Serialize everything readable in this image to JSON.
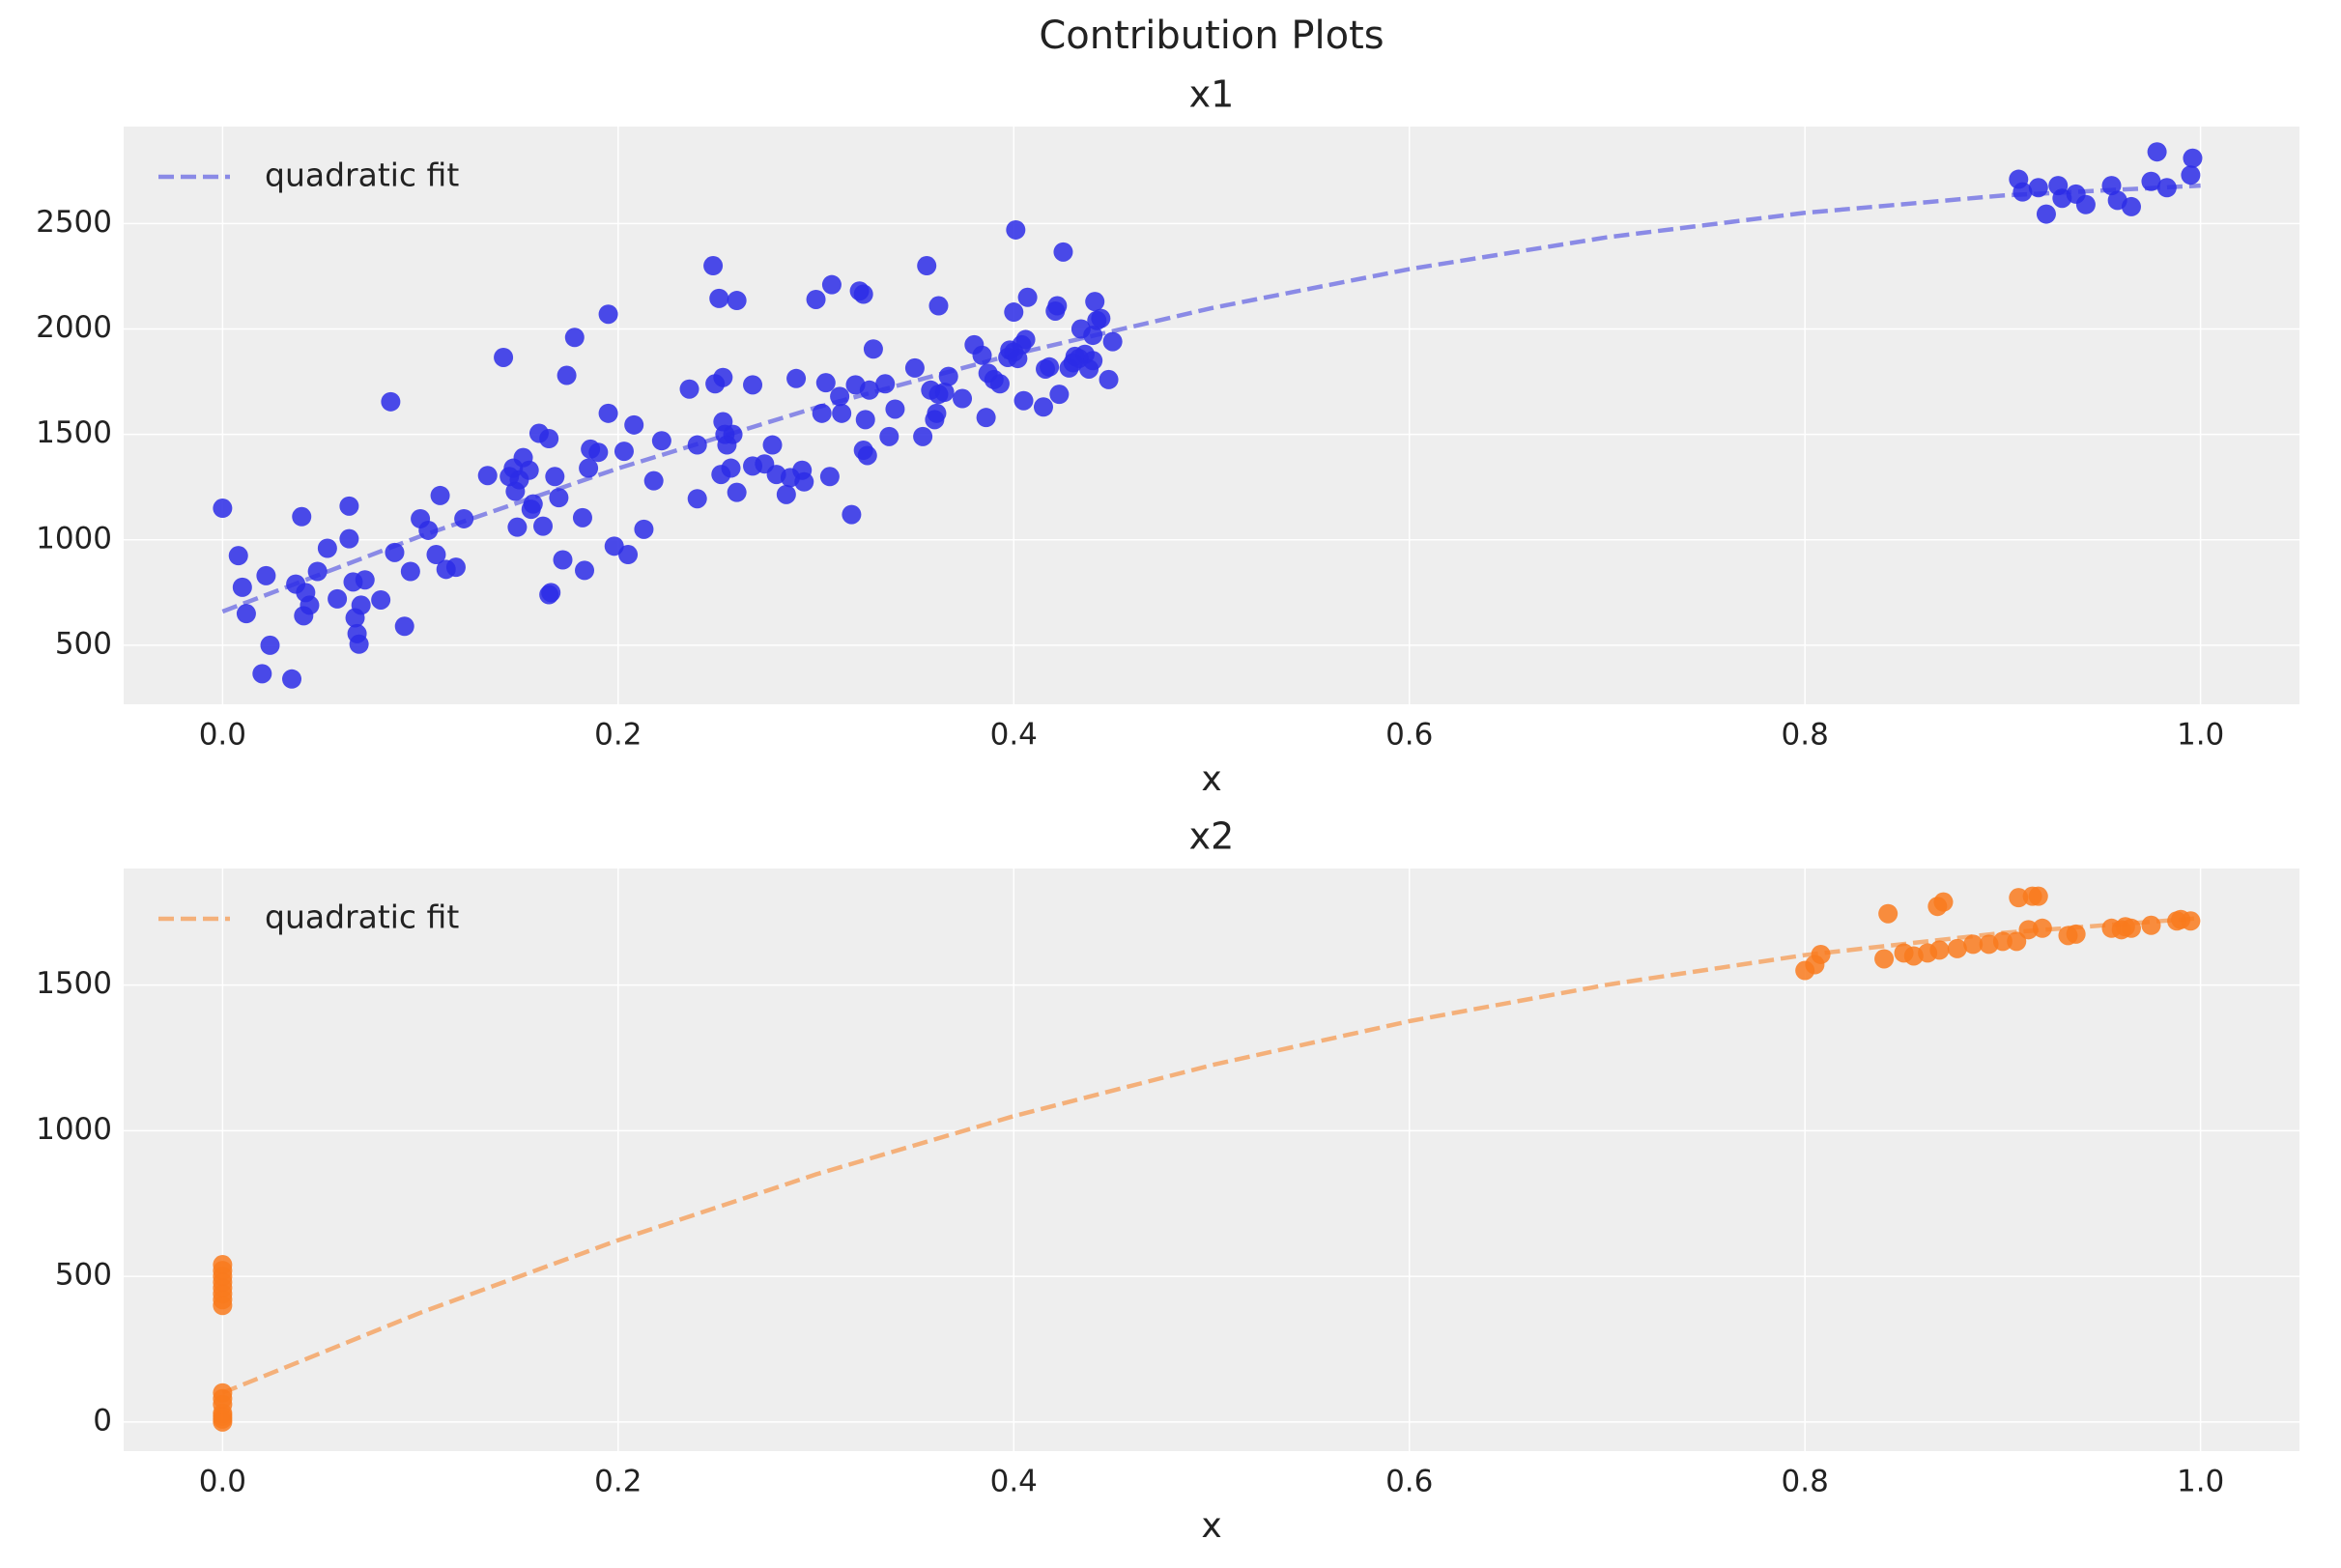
{
  "title": "Contribution Plots",
  "chart_data": [
    {
      "type": "scatter",
      "title": "x1",
      "xlabel": "x",
      "color": "#2b2be6",
      "grid": true,
      "legend": "upper left",
      "xlim": [
        -0.05,
        1.05
      ],
      "ylim": [
        220,
        2960
      ],
      "xticks": [
        {
          "value": 0,
          "label": "0.0"
        },
        0.2,
        0.4,
        0.6,
        0.8,
        {
          "value": 1,
          "label": "1.0"
        }
      ],
      "yticks": [
        500,
        1000,
        1500,
        2000,
        2500
      ],
      "x": [
        0.0,
        0.008,
        0.01,
        0.012,
        0.02,
        0.022,
        0.024,
        0.035,
        0.037,
        0.04,
        0.041,
        0.042,
        0.044,
        0.048,
        0.053,
        0.058,
        0.064,
        0.064,
        0.066,
        0.067,
        0.068,
        0.069,
        0.07,
        0.072,
        0.08,
        0.085,
        0.087,
        0.092,
        0.095,
        0.1,
        0.104,
        0.108,
        0.11,
        0.113,
        0.118,
        0.122,
        0.134,
        0.142,
        0.145,
        0.147,
        0.148,
        0.149,
        0.15,
        0.152,
        0.155,
        0.156,
        0.157,
        0.16,
        0.162,
        0.165,
        0.165,
        0.166,
        0.168,
        0.17,
        0.172,
        0.174,
        0.178,
        0.182,
        0.183,
        0.185,
        0.186,
        0.19,
        0.195,
        0.195,
        0.198,
        0.203,
        0.205,
        0.208,
        0.213,
        0.218,
        0.222,
        0.236,
        0.24,
        0.24,
        0.248,
        0.249,
        0.251,
        0.252,
        0.253,
        0.253,
        0.254,
        0.255,
        0.257,
        0.258,
        0.26,
        0.26,
        0.268,
        0.268,
        0.274,
        0.278,
        0.28,
        0.285,
        0.287,
        0.29,
        0.293,
        0.294,
        0.3,
        0.303,
        0.305,
        0.307,
        0.308,
        0.312,
        0.313,
        0.318,
        0.32,
        0.322,
        0.324,
        0.324,
        0.325,
        0.326,
        0.327,
        0.329,
        0.335,
        0.337,
        0.34,
        0.35,
        0.354,
        0.356,
        0.358,
        0.36,
        0.361,
        0.362,
        0.362,
        0.365,
        0.367,
        0.374,
        0.38,
        0.384,
        0.386,
        0.387,
        0.39,
        0.393,
        0.397,
        0.398,
        0.4,
        0.4,
        0.401,
        0.402,
        0.404,
        0.405,
        0.406,
        0.407,
        0.415,
        0.416,
        0.418,
        0.421,
        0.422,
        0.423,
        0.425,
        0.428,
        0.43,
        0.431,
        0.433,
        0.434,
        0.436,
        0.438,
        0.44,
        0.44,
        0.441,
        0.442,
        0.444,
        0.448,
        0.45,
        0.908,
        0.91,
        0.918,
        0.922,
        0.928,
        0.93,
        0.937,
        0.942,
        0.955,
        0.958,
        0.965,
        0.975,
        0.978,
        0.983,
        0.995,
        0.996
      ],
      "values": [
        1150,
        925,
        775,
        650,
        365,
        830,
        500,
        340,
        790,
        1110,
        640,
        750,
        690,
        850,
        960,
        720,
        1160,
        1005,
        800,
        630,
        555,
        505,
        690,
        810,
        715,
        1655,
        940,
        590,
        850,
        1100,
        1045,
        930,
        1210,
        860,
        870,
        1100,
        1305,
        1865,
        1300,
        1340,
        1230,
        1060,
        1285,
        1390,
        1330,
        1145,
        1170,
        1505,
        1065,
        1480,
        740,
        750,
        1300,
        1200,
        905,
        1780,
        1960,
        1105,
        855,
        1340,
        1430,
        1415,
        2070,
        1600,
        970,
        1420,
        930,
        1545,
        1050,
        1280,
        1470,
        1715,
        1195,
        1450,
        2300,
        1740,
        2145,
        1310,
        1770,
        1560,
        1500,
        1450,
        1340,
        1500,
        2135,
        1225,
        1735,
        1350,
        1360,
        1450,
        1310,
        1215,
        1295,
        1765,
        1330,
        1275,
        2140,
        1600,
        1745,
        1300,
        2210,
        1680,
        1600,
        1120,
        1735,
        2180,
        2165,
        1425,
        1570,
        1400,
        1710,
        1905,
        1740,
        1490,
        1620,
        1815,
        1490,
        2300,
        1710,
        1570,
        1600,
        2110,
        1690,
        1700,
        1775,
        1670,
        1925,
        1875,
        1580,
        1790,
        1760,
        1740,
        1865,
        1900,
        2080,
        1890,
        2470,
        1860,
        1925,
        1660,
        1950,
        2150,
        1630,
        1810,
        1820,
        2085,
        2110,
        1690,
        2365,
        1815,
        1840,
        1870,
        1860,
        2000,
        1880,
        1810,
        1850,
        1970,
        2130,
        2040,
        2050,
        1760,
        1940,
        2710,
        2650,
        2670,
        2545,
        2680,
        2620,
        2640,
        2590,
        2680,
        2610,
        2580,
        2700,
        2840,
        2670,
        2730,
        2810
      ],
      "series": [
        {
          "name": "quadratic fit",
          "color": "#8a8ae6",
          "x": [
            0,
            0.1,
            0.2,
            0.3,
            0.4,
            0.5,
            0.6,
            0.7,
            0.8,
            0.9,
            1
          ],
          "values": [
            660,
            1017,
            1339,
            1627,
            1880,
            2099,
            2284,
            2435,
            2551,
            2633,
            2680
          ]
        }
      ]
    },
    {
      "type": "scatter",
      "title": "x2",
      "xlabel": "x",
      "color": "#f97a1d",
      "grid": true,
      "legend": "upper left",
      "xlim": [
        -0.05,
        1.05
      ],
      "ylim": [
        -100,
        1900
      ],
      "xticks": [
        {
          "value": 0,
          "label": "0.0"
        },
        0.2,
        0.4,
        0.6,
        0.8,
        {
          "value": 1,
          "label": "1.0"
        }
      ],
      "yticks": [
        0,
        500,
        1000,
        1500
      ],
      "x": [
        0,
        0,
        0,
        0,
        0,
        0,
        0,
        0,
        0,
        0,
        0,
        0,
        0,
        0,
        0,
        0.8,
        0.805,
        0.808,
        0.84,
        0.842,
        0.85,
        0.855,
        0.862,
        0.867,
        0.868,
        0.87,
        0.877,
        0.885,
        0.893,
        0.9,
        0.907,
        0.908,
        0.913,
        0.915,
        0.918,
        0.92,
        0.933,
        0.937,
        0.955,
        0.96,
        0.962,
        0.965,
        0.975,
        0.988,
        0.99,
        0.995
      ],
      "values": [
        0,
        10,
        20,
        30,
        60,
        80,
        100,
        400,
        420,
        440,
        460,
        480,
        500,
        520,
        540,
        1550,
        1570,
        1605,
        1590,
        1745,
        1610,
        1600,
        1610,
        1770,
        1620,
        1785,
        1625,
        1640,
        1640,
        1650,
        1650,
        1800,
        1690,
        1805,
        1805,
        1695,
        1670,
        1675,
        1695,
        1690,
        1700,
        1695,
        1705,
        1720,
        1725,
        1720
      ],
      "series": [
        {
          "name": "quadratic fit",
          "color": "#f4b07a",
          "x": [
            0,
            0.1,
            0.2,
            0.3,
            0.4,
            0.5,
            0.6,
            0.7,
            0.8,
            0.9,
            1
          ],
          "values": [
            100,
            375,
            624,
            850,
            1050,
            1225,
            1376,
            1501,
            1603,
            1679,
            1730
          ]
        }
      ]
    }
  ]
}
